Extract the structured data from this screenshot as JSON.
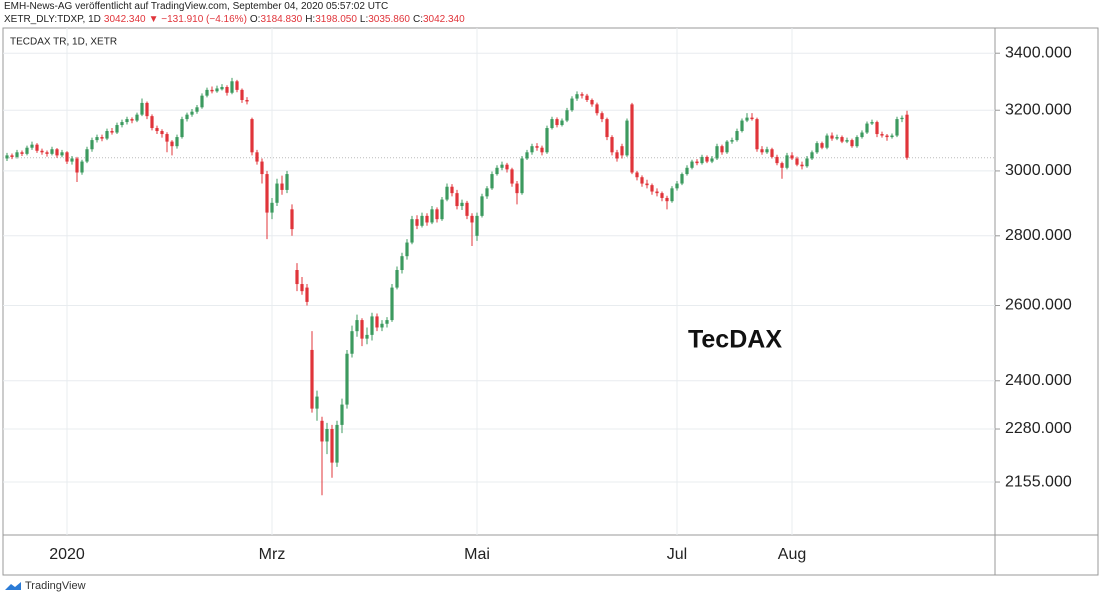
{
  "header": {
    "line1": "EMH-News-AG veröffentlicht auf TradingView.com, September 04, 2020 05:57:02 UTC",
    "symbol": "XETR_DLY:TDXP, 1D",
    "last": "3042.340",
    "change": "▼ −131.910 (−4.16%)",
    "fields": [
      {
        "label": "O:",
        "value": "3184.830"
      },
      {
        "label": "H:",
        "value": "3198.050"
      },
      {
        "label": "L:",
        "value": "3035.860"
      },
      {
        "label": "C:",
        "value": "3042.340"
      }
    ]
  },
  "footer": {
    "brand": "TradingView"
  },
  "chart_data": {
    "type": "candlestick",
    "legend_text": "TECDAX TR, 1D, XETR",
    "annotation": "TecDAX",
    "up_color": "#3c9a5f",
    "down_color": "#e0343a",
    "log_scale": true,
    "grid": true,
    "ylim": [
      2037,
      3485
    ],
    "yticks": [
      {
        "value": 3400,
        "label": "3400.000"
      },
      {
        "value": 3200,
        "label": "3200.000"
      },
      {
        "value": 3000,
        "label": "3000.000"
      },
      {
        "value": 2800,
        "label": "2800.000"
      },
      {
        "value": 2600,
        "label": "2600.000"
      },
      {
        "value": 2400,
        "label": "2400.000"
      },
      {
        "value": 2280,
        "label": "2280.000"
      },
      {
        "value": 2155,
        "label": "2155.000"
      }
    ],
    "categories": [
      null,
      null,
      null,
      null,
      null,
      null,
      null,
      null,
      null,
      null,
      null,
      null,
      "2020",
      null,
      null,
      null,
      null,
      null,
      null,
      null,
      null,
      null,
      null,
      null,
      null,
      null,
      null,
      null,
      null,
      null,
      null,
      null,
      null,
      null,
      null,
      null,
      null,
      null,
      null,
      null,
      null,
      null,
      null,
      null,
      null,
      null,
      null,
      null,
      null,
      null,
      null,
      null,
      null,
      "Mrz",
      null,
      null,
      null,
      null,
      null,
      null,
      null,
      null,
      null,
      null,
      null,
      null,
      null,
      null,
      null,
      null,
      null,
      null,
      null,
      null,
      null,
      null,
      null,
      null,
      null,
      null,
      null,
      null,
      null,
      null,
      null,
      null,
      null,
      null,
      null,
      null,
      null,
      null,
      null,
      null,
      "Mai",
      null,
      null,
      null,
      null,
      null,
      null,
      null,
      null,
      null,
      null,
      null,
      null,
      null,
      null,
      null,
      null,
      null,
      null,
      null,
      null,
      null,
      null,
      null,
      null,
      null,
      null,
      null,
      null,
      null,
      null,
      null,
      null,
      null,
      null,
      null,
      null,
      null,
      null,
      null,
      "Jul",
      null,
      null,
      null,
      null,
      null,
      null,
      null,
      null,
      null,
      null,
      null,
      null,
      null,
      null,
      null,
      null,
      null,
      null,
      null,
      null,
      null,
      null,
      "Aug",
      null,
      null,
      null,
      null,
      null,
      null,
      null,
      null,
      null,
      null,
      null,
      null,
      null,
      null,
      null,
      null,
      null,
      null,
      null,
      null,
      null,
      null,
      null
    ],
    "ohlc": [
      [
        3040,
        3058,
        3032,
        3050
      ],
      [
        3050,
        3056,
        3038,
        3045
      ],
      [
        3045,
        3068,
        3040,
        3060
      ],
      [
        3060,
        3066,
        3048,
        3055
      ],
      [
        3055,
        3082,
        3050,
        3075
      ],
      [
        3075,
        3095,
        3068,
        3085
      ],
      [
        3085,
        3090,
        3058,
        3065
      ],
      [
        3065,
        3072,
        3052,
        3060
      ],
      [
        3060,
        3066,
        3046,
        3055
      ],
      [
        3055,
        3078,
        3050,
        3070
      ],
      [
        3070,
        3074,
        3042,
        3050
      ],
      [
        3050,
        3068,
        3044,
        3060
      ],
      [
        3060,
        3064,
        3022,
        3030
      ],
      [
        3030,
        3048,
        3020,
        3040
      ],
      [
        3040,
        3045,
        2965,
        2995
      ],
      [
        2995,
        3036,
        2988,
        3030
      ],
      [
        3030,
        3078,
        3025,
        3070
      ],
      [
        3070,
        3108,
        3062,
        3100
      ],
      [
        3100,
        3118,
        3092,
        3110
      ],
      [
        3110,
        3118,
        3096,
        3105
      ],
      [
        3105,
        3138,
        3100,
        3130
      ],
      [
        3130,
        3140,
        3118,
        3125
      ],
      [
        3125,
        3158,
        3120,
        3150
      ],
      [
        3150,
        3168,
        3142,
        3160
      ],
      [
        3160,
        3178,
        3152,
        3170
      ],
      [
        3170,
        3176,
        3156,
        3165
      ],
      [
        3165,
        3192,
        3160,
        3185
      ],
      [
        3185,
        3240,
        3180,
        3225
      ],
      [
        3225,
        3230,
        3170,
        3180
      ],
      [
        3180,
        3186,
        3132,
        3140
      ],
      [
        3140,
        3148,
        3120,
        3130
      ],
      [
        3130,
        3136,
        3108,
        3120
      ],
      [
        3120,
        3126,
        3060,
        3095
      ],
      [
        3095,
        3100,
        3050,
        3080
      ],
      [
        3080,
        3118,
        3072,
        3110
      ],
      [
        3110,
        3178,
        3105,
        3170
      ],
      [
        3170,
        3192,
        3162,
        3185
      ],
      [
        3185,
        3204,
        3178,
        3195
      ],
      [
        3195,
        3218,
        3188,
        3210
      ],
      [
        3210,
        3258,
        3205,
        3250
      ],
      [
        3250,
        3278,
        3244,
        3270
      ],
      [
        3270,
        3282,
        3258,
        3265
      ],
      [
        3265,
        3285,
        3260,
        3275
      ],
      [
        3272,
        3290,
        3268,
        3280
      ],
      [
        3280,
        3286,
        3250,
        3260
      ],
      [
        3260,
        3312,
        3255,
        3300
      ],
      [
        3300,
        3305,
        3262,
        3270
      ],
      [
        3270,
        3275,
        3225,
        3235
      ],
      [
        3235,
        3245,
        3220,
        3230
      ],
      [
        3170,
        3175,
        3050,
        3060
      ],
      [
        3060,
        3068,
        3020,
        3030
      ],
      [
        3030,
        3040,
        2960,
        2990
      ],
      [
        2990,
        3000,
        2790,
        2870
      ],
      [
        2870,
        2915,
        2850,
        2900
      ],
      [
        2900,
        2975,
        2890,
        2960
      ],
      [
        2960,
        2985,
        2925,
        2940
      ],
      [
        2940,
        3000,
        2930,
        2990
      ],
      [
        2880,
        2895,
        2800,
        2820
      ],
      [
        2700,
        2720,
        2640,
        2660
      ],
      [
        2660,
        2680,
        2630,
        2640
      ],
      [
        2650,
        2660,
        2600,
        2610
      ],
      [
        2480,
        2530,
        2320,
        2330
      ],
      [
        2330,
        2375,
        2300,
        2360
      ],
      [
        2300,
        2310,
        2125,
        2250
      ],
      [
        2250,
        2295,
        2220,
        2280
      ],
      [
        2280,
        2290,
        2165,
        2200
      ],
      [
        2200,
        2300,
        2190,
        2290
      ],
      [
        2290,
        2355,
        2270,
        2340
      ],
      [
        2340,
        2480,
        2330,
        2470
      ],
      [
        2470,
        2545,
        2460,
        2530
      ],
      [
        2530,
        2575,
        2515,
        2560
      ],
      [
        2560,
        2565,
        2490,
        2510
      ],
      [
        2510,
        2540,
        2495,
        2520
      ],
      [
        2520,
        2580,
        2505,
        2570
      ],
      [
        2570,
        2578,
        2530,
        2540
      ],
      [
        2540,
        2560,
        2530,
        2550
      ],
      [
        2550,
        2568,
        2540,
        2560
      ],
      [
        2560,
        2660,
        2555,
        2650
      ],
      [
        2650,
        2710,
        2645,
        2700
      ],
      [
        2700,
        2750,
        2690,
        2740
      ],
      [
        2740,
        2790,
        2730,
        2780
      ],
      [
        2780,
        2860,
        2775,
        2850
      ],
      [
        2850,
        2862,
        2820,
        2830
      ],
      [
        2830,
        2870,
        2825,
        2860
      ],
      [
        2860,
        2868,
        2830,
        2840
      ],
      [
        2840,
        2890,
        2835,
        2880
      ],
      [
        2880,
        2886,
        2840,
        2850
      ],
      [
        2850,
        2918,
        2845,
        2910
      ],
      [
        2910,
        2960,
        2905,
        2950
      ],
      [
        2950,
        2958,
        2920,
        2930
      ],
      [
        2930,
        2940,
        2880,
        2890
      ],
      [
        2890,
        2910,
        2878,
        2900
      ],
      [
        2900,
        2906,
        2850,
        2860
      ],
      [
        2860,
        2868,
        2770,
        2840
      ],
      [
        2800,
        2870,
        2785,
        2860
      ],
      [
        2860,
        2928,
        2855,
        2920
      ],
      [
        2920,
        2952,
        2912,
        2945
      ],
      [
        2945,
        2998,
        2940,
        2990
      ],
      [
        2990,
        3018,
        2985,
        3010
      ],
      [
        3010,
        3030,
        3002,
        3020
      ],
      [
        3020,
        3026,
        2995,
        3005
      ],
      [
        3005,
        3010,
        2950,
        2960
      ],
      [
        2960,
        2968,
        2895,
        2930
      ],
      [
        2930,
        3048,
        2925,
        3040
      ],
      [
        3040,
        3068,
        3035,
        3060
      ],
      [
        3060,
        3088,
        3052,
        3080
      ],
      [
        3080,
        3090,
        3065,
        3075
      ],
      [
        3075,
        3082,
        3050,
        3060
      ],
      [
        3060,
        3148,
        3055,
        3140
      ],
      [
        3140,
        3178,
        3135,
        3170
      ],
      [
        3170,
        3176,
        3142,
        3150
      ],
      [
        3150,
        3172,
        3145,
        3165
      ],
      [
        3165,
        3208,
        3160,
        3200
      ],
      [
        3200,
        3248,
        3195,
        3240
      ],
      [
        3240,
        3265,
        3232,
        3255
      ],
      [
        3255,
        3262,
        3240,
        3250
      ],
      [
        3250,
        3256,
        3228,
        3235
      ],
      [
        3235,
        3240,
        3212,
        3220
      ],
      [
        3220,
        3226,
        3182,
        3190
      ],
      [
        3190,
        3196,
        3160,
        3170
      ],
      [
        3170,
        3175,
        3100,
        3110
      ],
      [
        3110,
        3116,
        3050,
        3060
      ],
      [
        3060,
        3068,
        3030,
        3040
      ],
      [
        3080,
        3088,
        3040,
        3050
      ],
      [
        3050,
        3172,
        3045,
        3165
      ],
      [
        3220,
        3225,
        2990,
        2995
      ],
      [
        2995,
        3000,
        2970,
        2980
      ],
      [
        2980,
        2986,
        2950,
        2960
      ],
      [
        2960,
        2972,
        2945,
        2955
      ],
      [
        2955,
        2960,
        2925,
        2935
      ],
      [
        2935,
        2945,
        2920,
        2930
      ],
      [
        2930,
        2935,
        2905,
        2915
      ],
      [
        2915,
        2922,
        2880,
        2905
      ],
      [
        2905,
        2952,
        2900,
        2945
      ],
      [
        2945,
        2968,
        2938,
        2960
      ],
      [
        2960,
        2995,
        2955,
        2990
      ],
      [
        2990,
        3018,
        2985,
        3010
      ],
      [
        3010,
        3036,
        3005,
        3030
      ],
      [
        3030,
        3038,
        3018,
        3025
      ],
      [
        3025,
        3052,
        3020,
        3045
      ],
      [
        3045,
        3050,
        3025,
        3030
      ],
      [
        3030,
        3048,
        3025,
        3040
      ],
      [
        3040,
        3088,
        3035,
        3080
      ],
      [
        3080,
        3085,
        3052,
        3060
      ],
      [
        3060,
        3100,
        3055,
        3095
      ],
      [
        3095,
        3108,
        3088,
        3100
      ],
      [
        3100,
        3138,
        3095,
        3130
      ],
      [
        3130,
        3172,
        3125,
        3165
      ],
      [
        3165,
        3190,
        3160,
        3175
      ],
      [
        3175,
        3190,
        3165,
        3170
      ],
      [
        3170,
        3175,
        3062,
        3070
      ],
      [
        3070,
        3080,
        3052,
        3060
      ],
      [
        3060,
        3078,
        3055,
        3070
      ],
      [
        3070,
        3075,
        3040,
        3045
      ],
      [
        3045,
        3052,
        3018,
        3025
      ],
      [
        3025,
        3030,
        2975,
        3010
      ],
      [
        3010,
        3058,
        3005,
        3050
      ],
      [
        3050,
        3060,
        3035,
        3040
      ],
      [
        3040,
        3046,
        3015,
        3020
      ],
      [
        3020,
        3030,
        3005,
        3015
      ],
      [
        3015,
        3048,
        3010,
        3040
      ],
      [
        3040,
        3066,
        3035,
        3060
      ],
      [
        3060,
        3096,
        3055,
        3090
      ],
      [
        3090,
        3095,
        3070,
        3075
      ],
      [
        3075,
        3122,
        3070,
        3115
      ],
      [
        3115,
        3125,
        3098,
        3105
      ],
      [
        3105,
        3118,
        3100,
        3110
      ],
      [
        3110,
        3115,
        3090,
        3095
      ],
      [
        3095,
        3108,
        3090,
        3100
      ],
      [
        3100,
        3105,
        3075,
        3080
      ],
      [
        3080,
        3116,
        3075,
        3110
      ],
      [
        3110,
        3132,
        3105,
        3125
      ],
      [
        3125,
        3162,
        3120,
        3155
      ],
      [
        3155,
        3168,
        3150,
        3160
      ],
      [
        3160,
        3165,
        3110,
        3120
      ],
      [
        3120,
        3128,
        3108,
        3115
      ],
      [
        3115,
        3120,
        3098,
        3110
      ],
      [
        3110,
        3122,
        3105,
        3115
      ],
      [
        3115,
        3178,
        3110,
        3170
      ],
      [
        3170,
        3182,
        3160,
        3174.25
      ],
      [
        3184.83,
        3198.05,
        3035.86,
        3042.34
      ]
    ]
  }
}
